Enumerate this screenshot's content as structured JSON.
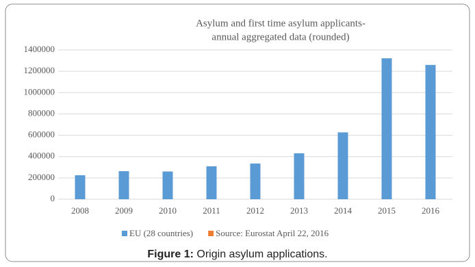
{
  "chart_data": {
    "type": "bar",
    "title": [
      "Asylum and first time asylum applicants-",
      "annual aggregated data (rounded)"
    ],
    "categories": [
      "2008",
      "2009",
      "2010",
      "2011",
      "2012",
      "2013",
      "2014",
      "2015",
      "2016"
    ],
    "series": [
      {
        "name": "EU (28 countries)",
        "color": "#5b9bd5",
        "values": [
          225000,
          263000,
          260000,
          309000,
          335000,
          431000,
          627000,
          1322000,
          1260000
        ]
      },
      {
        "name": "Source: Eurostat April 22, 2016",
        "color": "#ed7d31",
        "values": [
          null,
          null,
          null,
          null,
          null,
          null,
          null,
          null,
          null
        ]
      }
    ],
    "ylim": [
      0,
      1400000
    ],
    "yticks": [
      0,
      200000,
      400000,
      600000,
      800000,
      1000000,
      1200000,
      1400000
    ],
    "grid": true,
    "legend": "bottom"
  },
  "caption": {
    "label": "Figure 1:",
    "text": "Origin asylum applications."
  }
}
